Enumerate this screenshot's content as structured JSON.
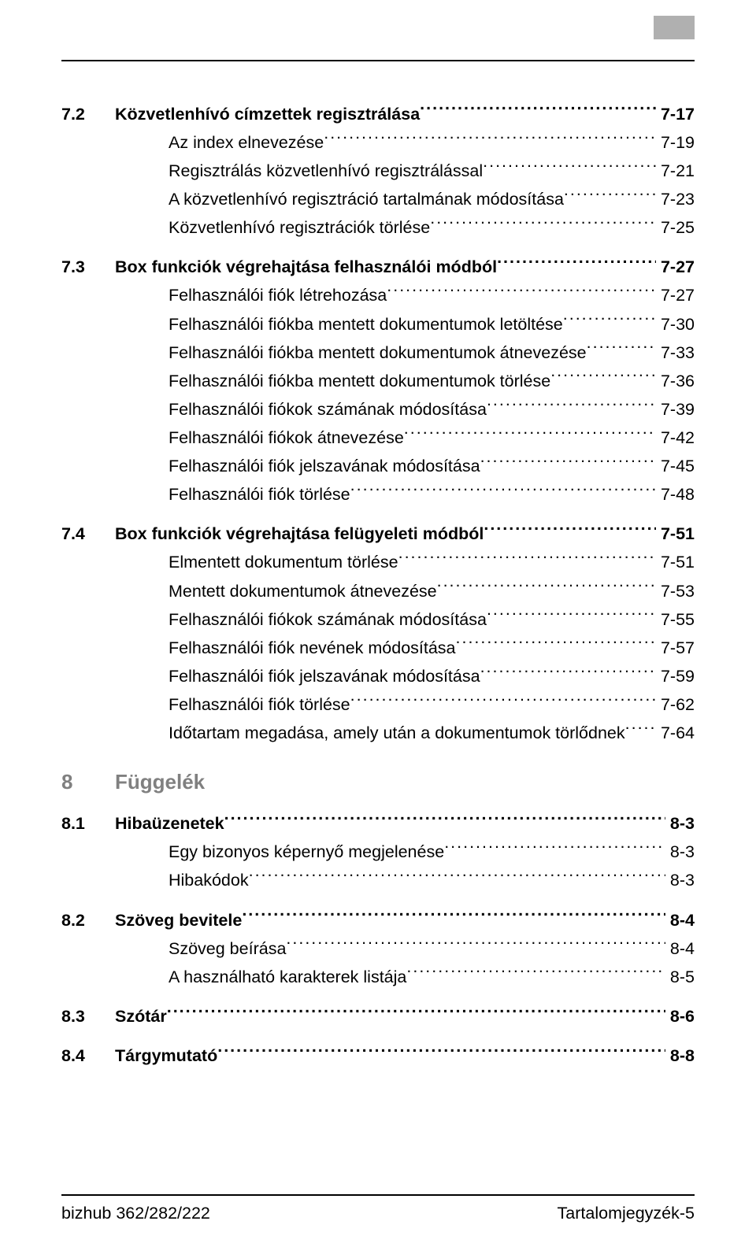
{
  "sections": {
    "s72": {
      "num": "7.2",
      "title": "Közvetlenhívó címzettek regisztrálása",
      "page": "7-17",
      "items": [
        {
          "label": "Az index elnevezése",
          "page": "7-19"
        },
        {
          "label": "Regisztrálás közvetlenhívó regisztrálással",
          "page": "7-21"
        },
        {
          "label": "A közvetlenhívó regisztráció tartalmának módosítása",
          "page": "7-23"
        },
        {
          "label": "Közvetlenhívó regisztrációk törlése",
          "page": "7-25"
        }
      ]
    },
    "s73": {
      "num": "7.3",
      "title": "Box funkciók végrehajtása felhasználói módból",
      "page": "7-27",
      "items": [
        {
          "label": "Felhasználói fiók létrehozása",
          "page": "7-27"
        },
        {
          "label": "Felhasználói fiókba mentett dokumentumok letöltése",
          "page": "7-30"
        },
        {
          "label": "Felhasználói fiókba mentett dokumentumok átnevezése",
          "page": "7-33"
        },
        {
          "label": "Felhasználói fiókba mentett dokumentumok törlése",
          "page": "7-36"
        },
        {
          "label": "Felhasználói fiókok számának módosítása",
          "page": "7-39"
        },
        {
          "label": "Felhasználói fiókok átnevezése",
          "page": "7-42"
        },
        {
          "label": "Felhasználói fiók jelszavának módosítása",
          "page": "7-45"
        },
        {
          "label": "Felhasználói fiók törlése",
          "page": "7-48"
        }
      ]
    },
    "s74": {
      "num": "7.4",
      "title": "Box funkciók végrehajtása felügyeleti módból",
      "page": "7-51",
      "items": [
        {
          "label": "Elmentett dokumentum törlése",
          "page": "7-51"
        },
        {
          "label": "Mentett dokumentumok átnevezése",
          "page": "7-53"
        },
        {
          "label": "Felhasználói fiókok számának módosítása",
          "page": "7-55"
        },
        {
          "label": "Felhasználói fiók nevének módosítása",
          "page": "7-57"
        },
        {
          "label": "Felhasználói fiók jelszavának módosítása",
          "page": "7-59"
        },
        {
          "label": "Felhasználói fiók törlése",
          "page": "7-62"
        },
        {
          "label": "Időtartam megadása, amely után a dokumentumok törlődnek",
          "page": "7-64"
        }
      ]
    },
    "chapter8": {
      "num": "8",
      "title": "Függelék"
    },
    "s81": {
      "num": "8.1",
      "title": "Hibaüzenetek",
      "page": "8-3",
      "items": [
        {
          "label": "Egy bizonyos képernyő megjelenése",
          "page": "8-3"
        },
        {
          "label": "Hibakódok",
          "page": "8-3"
        }
      ]
    },
    "s82": {
      "num": "8.2",
      "title": "Szöveg bevitele",
      "page": "8-4",
      "items": [
        {
          "label": "Szöveg beírása",
          "page": "8-4"
        },
        {
          "label": "A használható karakterek listája",
          "page": "8-5"
        }
      ]
    },
    "s83": {
      "num": "8.3",
      "title": "Szótár",
      "page": "8-6"
    },
    "s84": {
      "num": "8.4",
      "title": "Tárgymutató",
      "page": "8-8"
    }
  },
  "footer": {
    "left": "bizhub 362/282/222",
    "right": "Tartalomjegyzék-5"
  }
}
